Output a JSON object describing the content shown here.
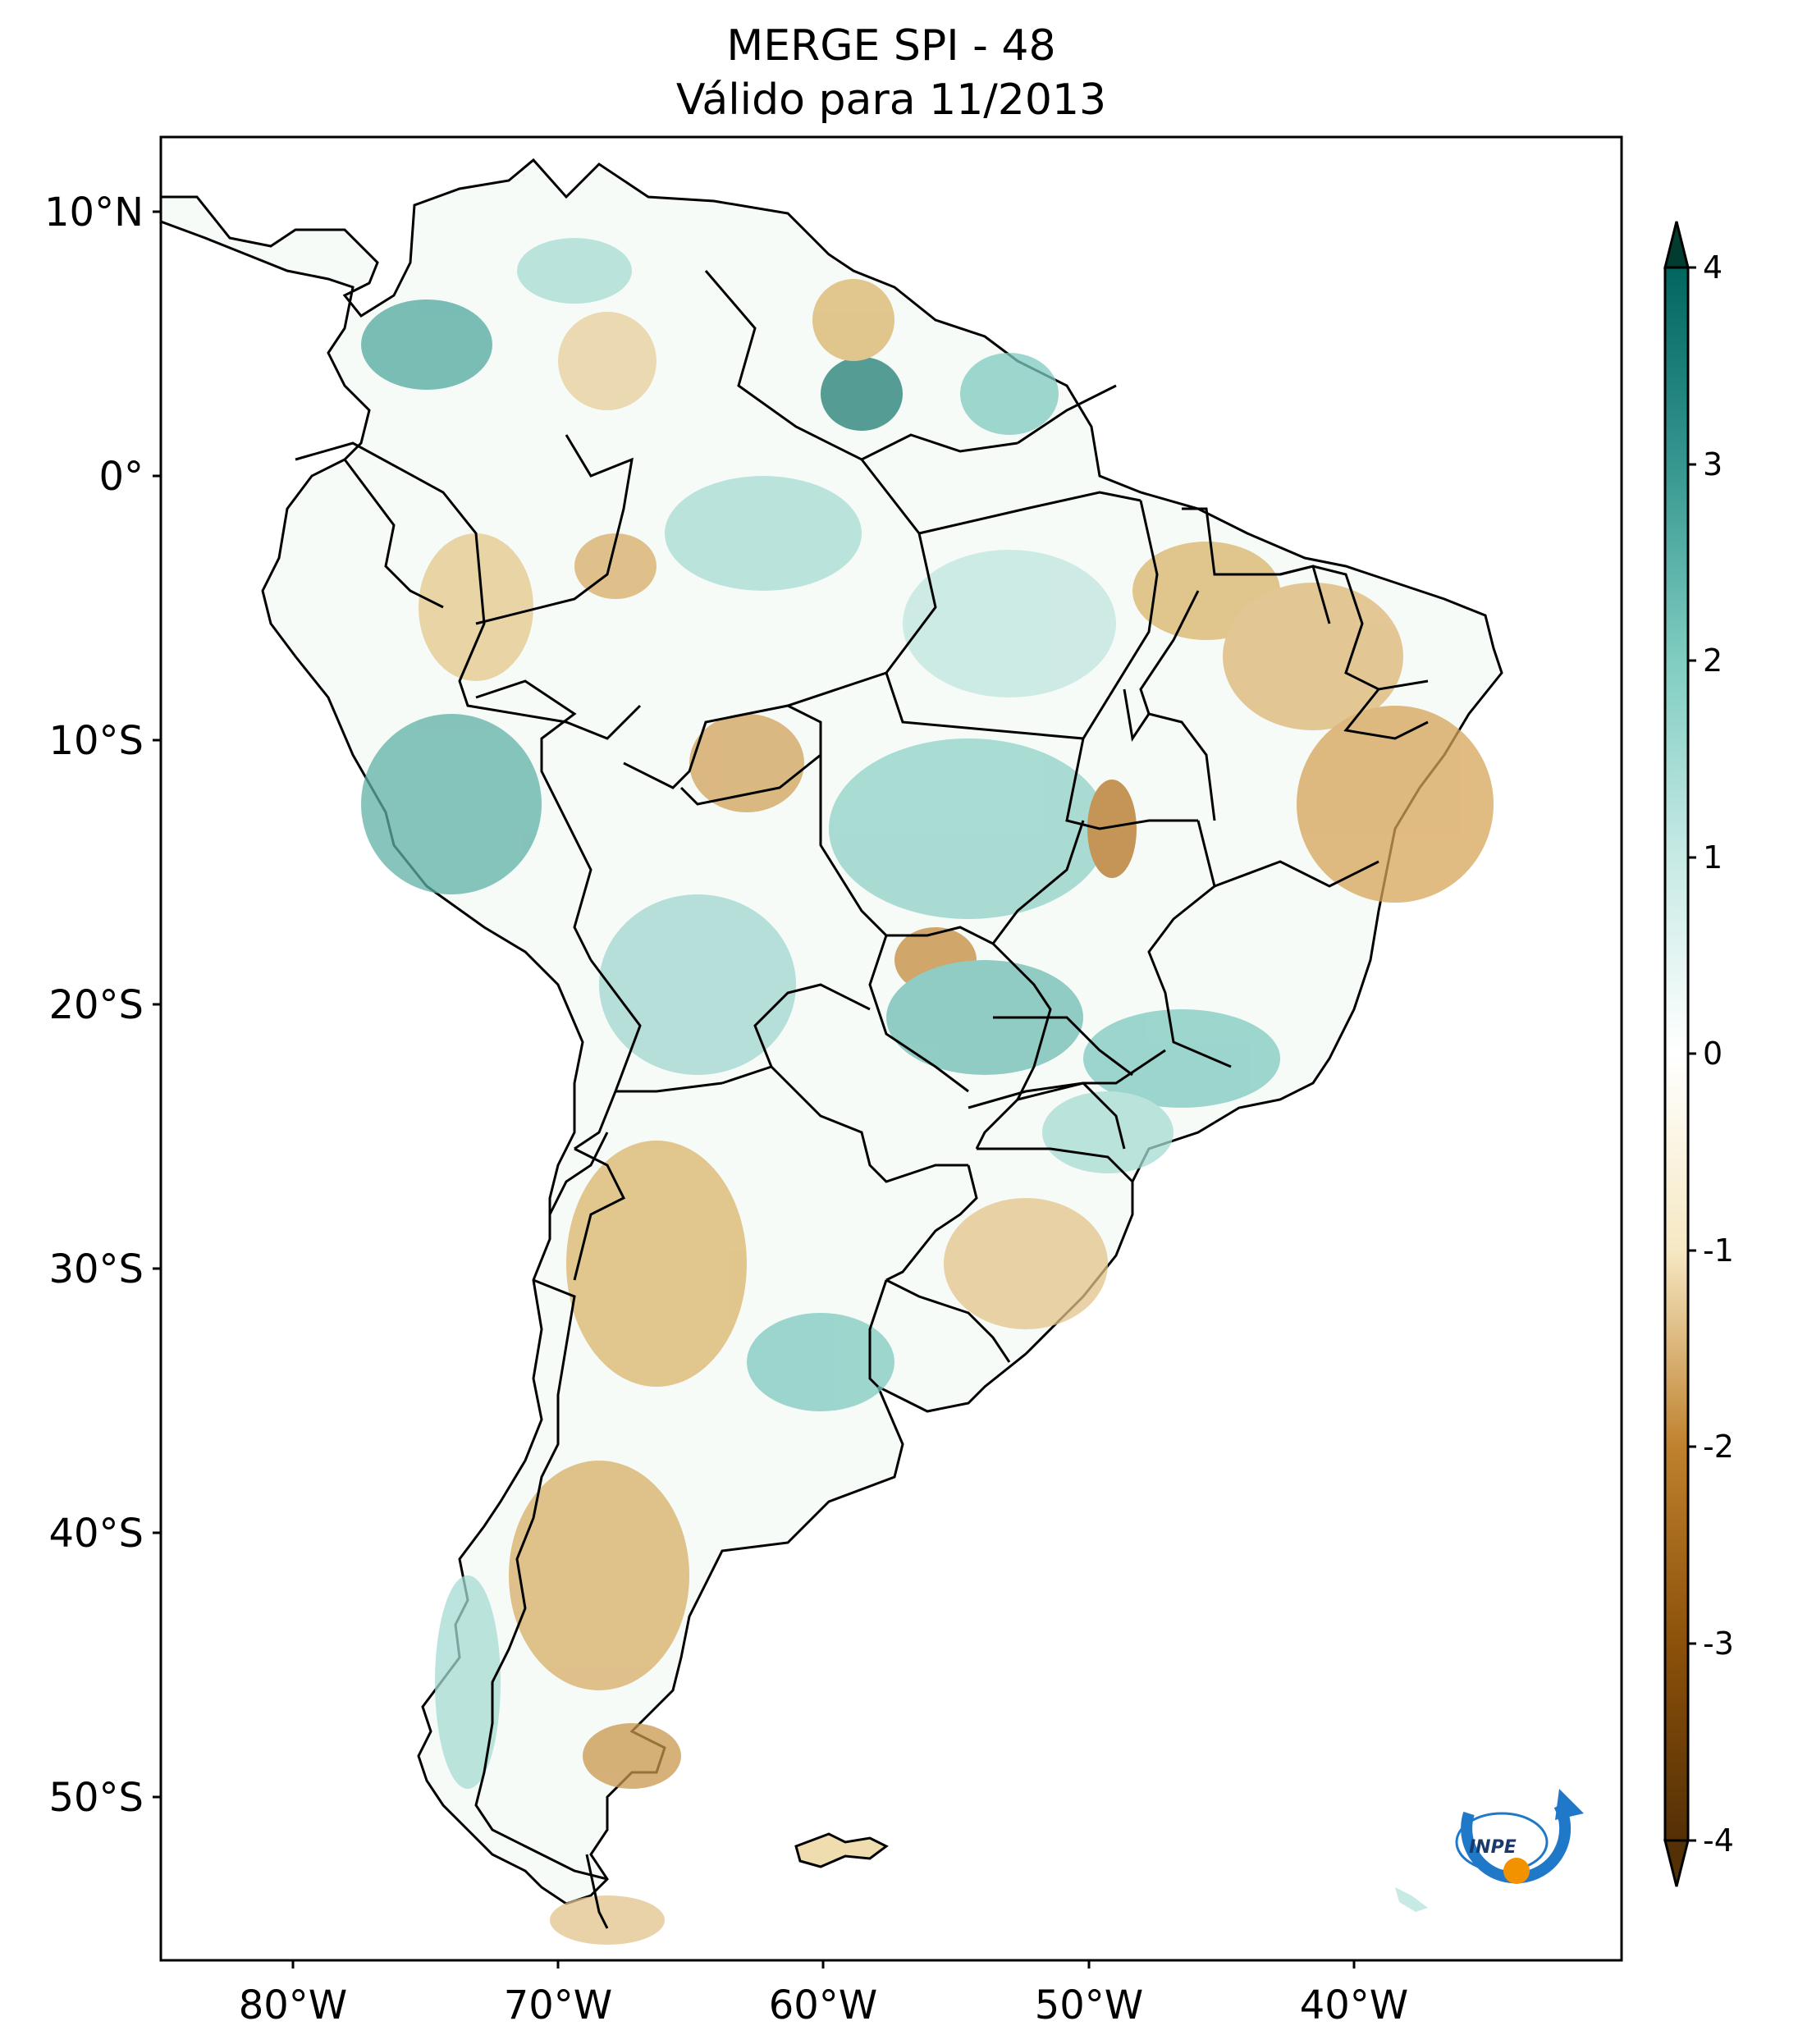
{
  "title": {
    "line1": "MERGE   SPI - 48",
    "line2": "Válido para 11/2013"
  },
  "axes": {
    "lat_ticks": [
      {
        "label": "10°N",
        "value": 10
      },
      {
        "label": "0°",
        "value": 0
      },
      {
        "label": "10°S",
        "value": -10
      },
      {
        "label": "20°S",
        "value": -20
      },
      {
        "label": "30°S",
        "value": -30
      },
      {
        "label": "40°S",
        "value": -40
      },
      {
        "label": "50°S",
        "value": -50
      }
    ],
    "lon_ticks": [
      {
        "label": "80°W",
        "value": -80
      },
      {
        "label": "70°W",
        "value": -70
      },
      {
        "label": "60°W",
        "value": -60
      },
      {
        "label": "50°W",
        "value": -50
      },
      {
        "label": "40°W",
        "value": -40
      }
    ],
    "lat_range": [
      -56,
      13
    ],
    "lon_range": [
      -85,
      -30
    ]
  },
  "colorbar": {
    "ticks": [
      "4",
      "3",
      "2",
      "1",
      "0",
      "-1",
      "-2",
      "-3",
      "-4"
    ],
    "range": [
      -4,
      4
    ],
    "extend": "both",
    "colors": {
      "max": "#003c30",
      "high": "#35978f",
      "mid_high": "#c7eae5",
      "zero": "#ffffff",
      "mid_low": "#f6e8c3",
      "low": "#bf812d",
      "min": "#543005"
    }
  },
  "logo": {
    "text": "INPE"
  }
}
